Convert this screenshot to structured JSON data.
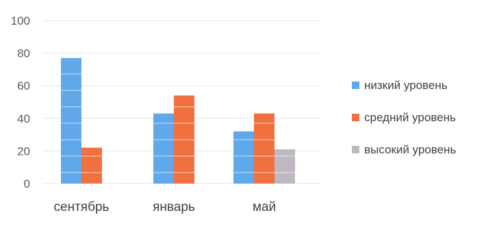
{
  "chart_data": {
    "type": "bar",
    "title": "",
    "xlabel": "",
    "ylabel": "",
    "ylim": [
      0,
      100
    ],
    "yticks": [
      0,
      20,
      40,
      60,
      80,
      100
    ],
    "categories": [
      "сентябрь",
      "январь",
      "май"
    ],
    "series": [
      {
        "name": "низкий уровень",
        "color": "#5fa8ea",
        "values": [
          77,
          43,
          32
        ]
      },
      {
        "name": "средний уровень",
        "color": "#f07040",
        "values": [
          22,
          54,
          43
        ]
      },
      {
        "name": "высокий уровень",
        "color": "#c0b8c0",
        "values": [
          null,
          null,
          21
        ]
      }
    ],
    "grid": true,
    "legend_position": "right"
  }
}
